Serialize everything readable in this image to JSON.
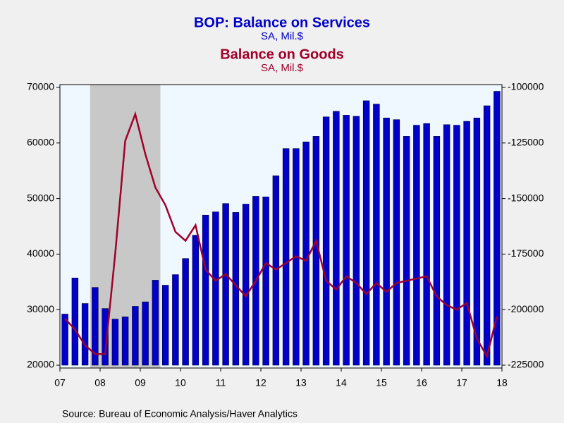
{
  "chart_data": {
    "type": "bar-line",
    "source": "Source:  Bureau of Economic Analysis/Haver Analytics",
    "x": [
      2007,
      2007.25,
      2007.5,
      2007.75,
      2008,
      2008.25,
      2008.5,
      2008.75,
      2009,
      2009.25,
      2009.5,
      2009.75,
      2010,
      2010.25,
      2010.5,
      2010.75,
      2011,
      2011.25,
      2011.5,
      2011.75,
      2012,
      2012.25,
      2012.5,
      2012.75,
      2013,
      2013.25,
      2013.5,
      2013.75,
      2014,
      2014.25,
      2014.5,
      2014.75,
      2015,
      2015.25,
      2015.5,
      2015.75,
      2016,
      2016.25,
      2016.5,
      2016.75,
      2017,
      2017.25,
      2017.5,
      2017.75
    ],
    "xlim": [
      2007,
      2018
    ],
    "xticks": [
      {
        "value": 2007,
        "label": "07"
      },
      {
        "value": 2008,
        "label": "08"
      },
      {
        "value": 2009,
        "label": "09"
      },
      {
        "value": 2010,
        "label": "10"
      },
      {
        "value": 2011,
        "label": "11"
      },
      {
        "value": 2012,
        "label": "12"
      },
      {
        "value": 2013,
        "label": "13"
      },
      {
        "value": 2014,
        "label": "14"
      },
      {
        "value": 2015,
        "label": "15"
      },
      {
        "value": 2016,
        "label": "16"
      },
      {
        "value": 2017,
        "label": "17"
      },
      {
        "value": 2018,
        "label": "18"
      }
    ],
    "ylim": [
      20000,
      70000
    ],
    "yticks": [
      20000,
      30000,
      40000,
      50000,
      60000,
      70000
    ],
    "y2lim": [
      -225000,
      -100000
    ],
    "y2ticks": [
      -225000,
      -200000,
      -175000,
      -150000,
      -125000,
      -100000
    ],
    "recessions": [
      {
        "start": 2007.75,
        "end": 2009.5
      }
    ],
    "series": [
      {
        "name": "BOP: Balance on Services",
        "units": "SA, Mil.$",
        "kind": "bar",
        "axis": "y",
        "color": "#0000c8",
        "values": [
          29200,
          35700,
          31100,
          34000,
          30200,
          28300,
          28700,
          30600,
          31400,
          35300,
          34400,
          36300,
          39200,
          43400,
          47000,
          47600,
          49100,
          47500,
          49000,
          50400,
          50300,
          54100,
          59000,
          59000,
          60200,
          61200,
          64700,
          65700,
          65000,
          64800,
          67600,
          67000,
          64500,
          64200,
          61200,
          63200,
          63500,
          61200,
          63300,
          63200,
          63900,
          64500,
          66700,
          69300
        ]
      },
      {
        "name": "Balance on Goods",
        "units": "SA, Mil.$",
        "kind": "line",
        "axis": "y2",
        "color": "#a0002a",
        "values": [
          -204000,
          -209000,
          -216000,
          -220000,
          -220000,
          -175000,
          -124000,
          -112000,
          -130000,
          -145000,
          -153000,
          -165000,
          -169000,
          -162000,
          -182000,
          -187000,
          -184000,
          -189000,
          -194000,
          -187000,
          -179000,
          -182000,
          -179000,
          -176000,
          -178000,
          -169000,
          -187000,
          -191000,
          -185000,
          -188000,
          -193000,
          -188000,
          -192000,
          -188000,
          -187000,
          -186000,
          -185000,
          -194000,
          -198000,
          -200000,
          -197000,
          -213000,
          -221000,
          -203000
        ]
      }
    ]
  }
}
